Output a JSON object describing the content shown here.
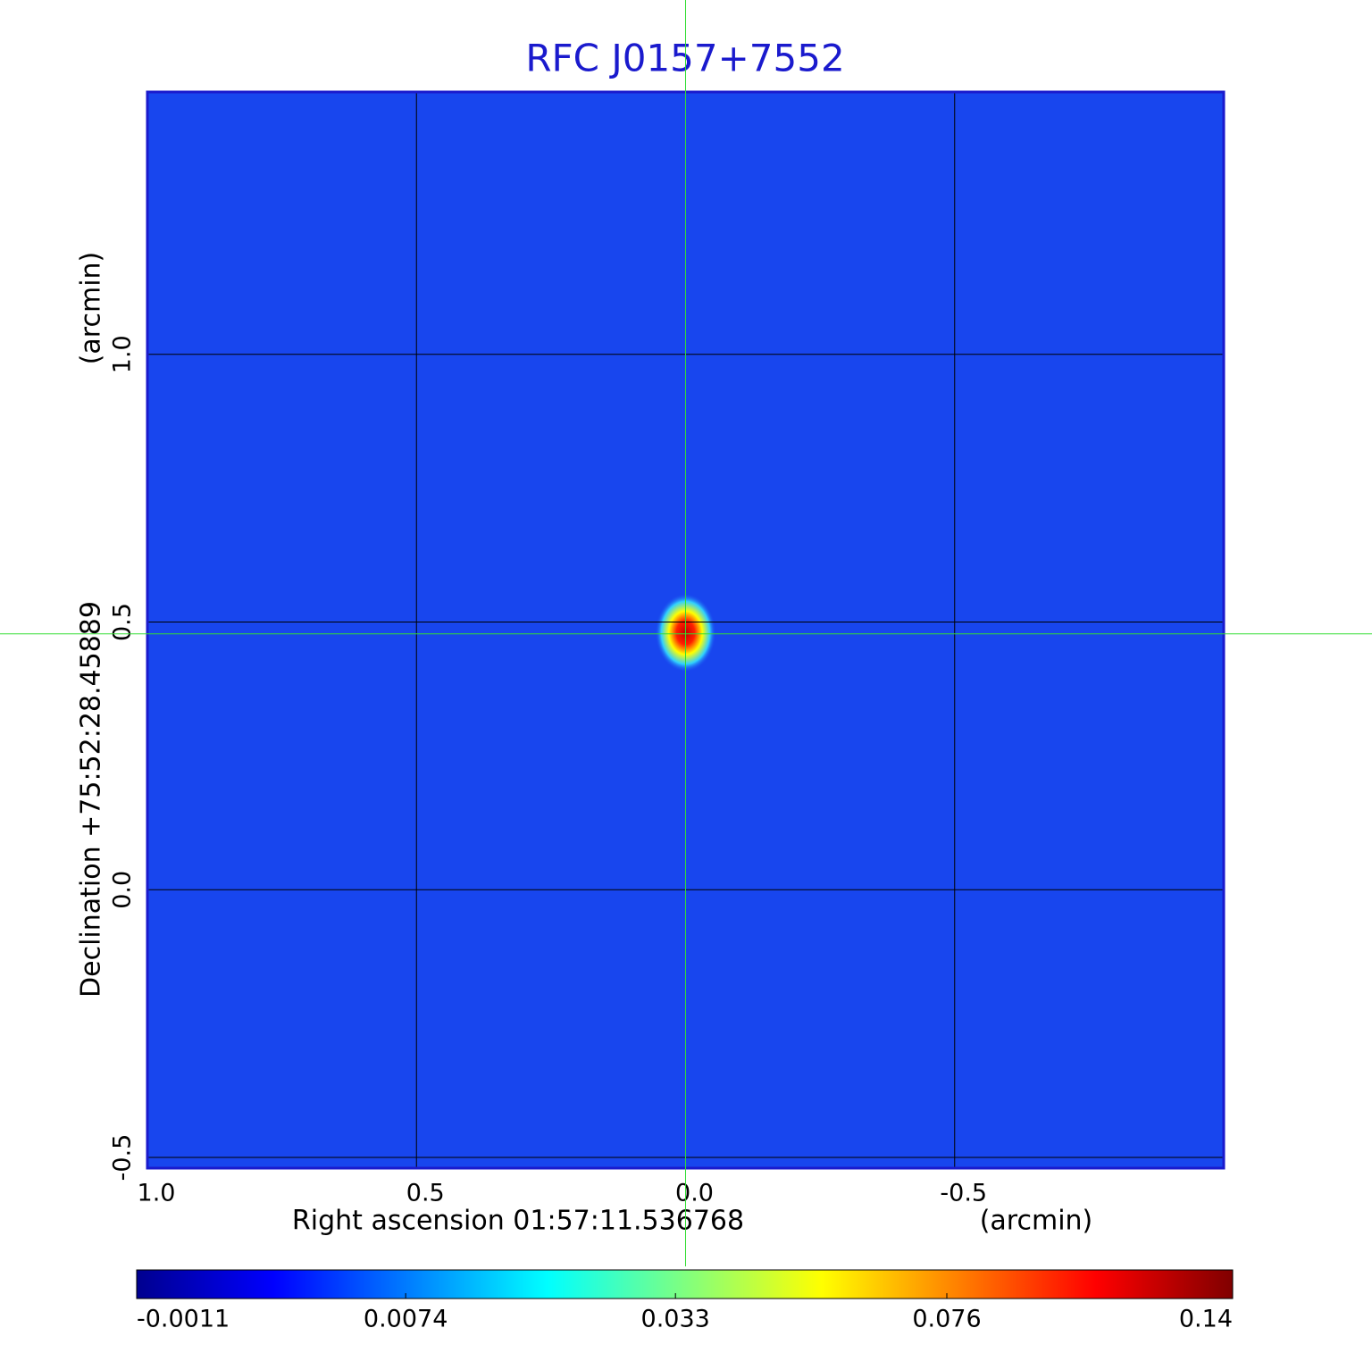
{
  "chart_data": {
    "type": "image",
    "title": "RFC J0157+7552",
    "x_label": "Right ascension  01:57:11.536768",
    "x_unit": "(arcmin)",
    "y_label": "Declination  +75:52:28.45889",
    "y_unit": "(arcmin)",
    "xlim": [
      1.0,
      -1.0
    ],
    "xticks": [
      {
        "value": 1,
        "label": "1.0"
      },
      {
        "value": 0.5,
        "label": "0.5"
      },
      {
        "value": 0,
        "label": "0.0"
      },
      {
        "value": -0.5,
        "label": "-0.5"
      }
    ],
    "ylim": [
      -0.52,
      1.49
    ],
    "yticks": [
      {
        "value": -0.5,
        "label": "-0.5"
      },
      {
        "value": 0,
        "label": "0.0"
      },
      {
        "value": 0.5,
        "label": "0.5"
      },
      {
        "value": 1,
        "label": "1.0"
      }
    ],
    "grid": true,
    "source": {
      "x": 0,
      "y": 0.48,
      "peak": 0.14
    },
    "crosshair": {
      "x": 0,
      "y": 0.478,
      "color": "#33dd33"
    },
    "colorbar": {
      "scale": "sqrt",
      "lim": [
        -0.0011,
        0.14
      ],
      "ticks": [
        -0.0011,
        0.0074,
        0.033,
        0.076,
        0.14
      ]
    },
    "title_color": "#1a1acd",
    "background_color": "#1846ee"
  }
}
